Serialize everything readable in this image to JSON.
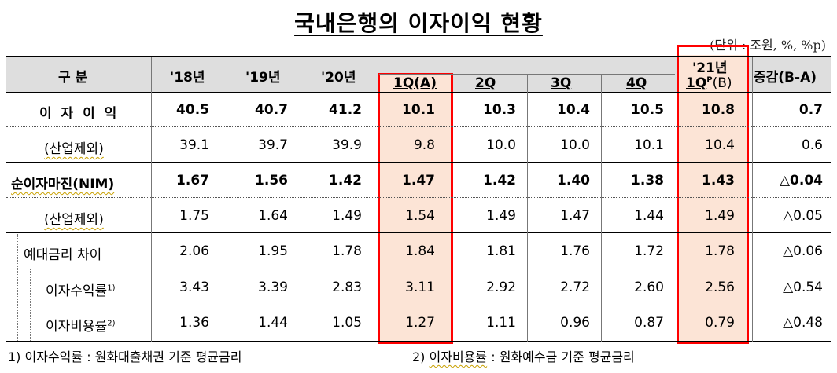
{
  "title": "국내은행의 이자이익 현황",
  "unit": "(단위 : 조원, %, %p)",
  "header": {
    "category": "구 분",
    "y18": "'18년",
    "y19": "'19년",
    "y20": "'20년",
    "q1": "1Q(A)",
    "q2": "2Q",
    "q3": "3Q",
    "q4": "4Q",
    "y21_top": "'21년",
    "y21_q": "1Q",
    "y21_sup": "P",
    "y21_b": "(B)",
    "change": "증감(B-A)"
  },
  "rows": [
    {
      "label": "이 자 이 익",
      "values": [
        "40.5",
        "40.7",
        "41.2",
        "10.1",
        "10.3",
        "10.4",
        "10.5",
        "10.8",
        "0.7"
      ]
    },
    {
      "label": "(산업제외)",
      "values": [
        "39.1",
        "39.7",
        "39.9",
        "9.8",
        "10.0",
        "10.0",
        "10.1",
        "10.4",
        "0.6"
      ]
    },
    {
      "label": "순이자마진(NIM)",
      "values": [
        "1.67",
        "1.56",
        "1.42",
        "1.47",
        "1.42",
        "1.40",
        "1.38",
        "1.43",
        "△0.04"
      ]
    },
    {
      "label": "(산업제외)",
      "values": [
        "1.75",
        "1.64",
        "1.49",
        "1.54",
        "1.49",
        "1.47",
        "1.44",
        "1.49",
        "△0.05"
      ]
    },
    {
      "label": "예대금리 차이",
      "values": [
        "2.06",
        "1.95",
        "1.78",
        "1.84",
        "1.81",
        "1.76",
        "1.72",
        "1.78",
        "△0.06"
      ]
    },
    {
      "label": "이자수익률",
      "sup": "1)",
      "values": [
        "3.43",
        "3.39",
        "2.83",
        "3.11",
        "2.92",
        "2.72",
        "2.60",
        "2.56",
        "△0.54"
      ]
    },
    {
      "label": "이자비용률",
      "sup": "2)",
      "values": [
        "1.36",
        "1.44",
        "1.05",
        "1.27",
        "1.11",
        "0.96",
        "0.87",
        "0.79",
        "△0.48"
      ]
    }
  ],
  "footnotes": {
    "f1": "1) 이자수익률 : 원화대출채권 기준 평균금리",
    "f2_prefix": "2) ",
    "f2_term": "이자비용률",
    "f2_rest": " : 원화예수금 기준 평균금리"
  },
  "colors": {
    "highlight": "#fce4d6",
    "box": "#ff0000",
    "header": "#dedede"
  }
}
